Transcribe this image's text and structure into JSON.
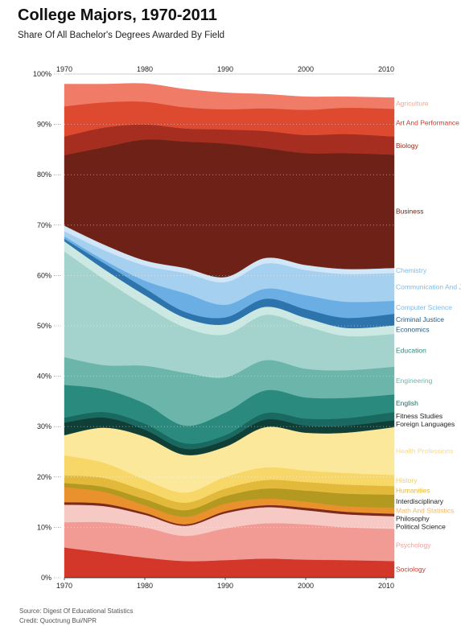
{
  "title": "College Majors, 1970-2011",
  "subtitle": "Share Of All Bachelor's Degrees Awarded By Field",
  "source": "Source: Digest Of Educational Statistics",
  "credit": "Credit: Quoctrung Bui/NPR",
  "chart_data": {
    "type": "area",
    "stacked": true,
    "grid": true,
    "legend": "right",
    "x": [
      1970,
      1975,
      1980,
      1985,
      1990,
      1995,
      2000,
      2005,
      2011
    ],
    "xticks": [
      1970,
      1980,
      1990,
      2000,
      2010
    ],
    "xtick_labels": [
      "1970",
      "1980",
      "1990",
      "2000",
      "2010"
    ],
    "ylim": [
      0,
      100
    ],
    "yticks": [
      0,
      10,
      20,
      30,
      40,
      50,
      60,
      70,
      80,
      90,
      100
    ],
    "ytick_labels": [
      "0%",
      "10%",
      "20%",
      "30%",
      "40%",
      "50%",
      "60%",
      "70%",
      "80%",
      "90%",
      "100%"
    ],
    "series": [
      {
        "name": "Sociology",
        "color": "#d2372a",
        "label_color": "#c93a2c",
        "values": [
          6,
          5,
          4,
          3.3,
          3.5,
          3.8,
          3.6,
          3.5,
          3.3
        ]
      },
      {
        "name": "Psychology",
        "color": "#f29b94",
        "label_color": "#f0a09a",
        "values": [
          5,
          6,
          6,
          5,
          6.3,
          7,
          7,
          6.5,
          6.4
        ]
      },
      {
        "name": "Political Science",
        "color": "#f6c9c4",
        "label_color": "#222222",
        "values": [
          3.5,
          3.2,
          2.5,
          2,
          3,
          3.2,
          2.8,
          2.6,
          2.5
        ]
      },
      {
        "name": "Philosophy",
        "color": "#7c2a1c",
        "label_color": "#222222",
        "values": [
          0.5,
          0.5,
          0.4,
          0.3,
          0.4,
          0.4,
          0.5,
          0.5,
          0.5
        ]
      },
      {
        "name": "Math And Statistics",
        "color": "#e8912d",
        "label_color": "#f2b860",
        "values": [
          3,
          2.3,
          1.5,
          1.5,
          1.5,
          1.3,
          1.2,
          1.1,
          1.2
        ]
      },
      {
        "name": "Interdisciplinary",
        "color": "#b3991f",
        "label_color": "#222222",
        "values": [
          0.8,
          1,
          1.2,
          1.3,
          1.5,
          2,
          2.2,
          2.5,
          2.6
        ]
      },
      {
        "name": "Humanities",
        "color": "#e2b93a",
        "label_color": "#e6b830",
        "values": [
          1.5,
          1.8,
          1.7,
          1.5,
          1.5,
          1.7,
          1.7,
          1.8,
          1.7
        ]
      },
      {
        "name": "History",
        "color": "#f7d768",
        "label_color": "#f2cf52",
        "values": [
          4,
          3,
          2.2,
          2,
          2.3,
          2.5,
          2.3,
          2.3,
          2.2
        ]
      },
      {
        "name": "Health Professions",
        "color": "#fbe89b",
        "label_color": "#f7d98a",
        "values": [
          4,
          7,
          8.5,
          7.5,
          6,
          8,
          7.5,
          8,
          9.5
        ]
      },
      {
        "name": "Foreign Languages",
        "color": "#0f3f36",
        "label_color": "#222222",
        "values": [
          2.5,
          2,
          1.4,
          1.2,
          1.3,
          1.5,
          1.4,
          1.4,
          1.4
        ]
      },
      {
        "name": "Fitness Studies",
        "color": "#1a6960",
        "label_color": "#222222",
        "values": [
          1,
          1.1,
          1.2,
          1.1,
          1,
          1.3,
          1.4,
          1.5,
          1.6
        ]
      },
      {
        "name": "English",
        "color": "#2a8a7e",
        "label_color": "#1a6d64",
        "values": [
          6.5,
          4.5,
          4,
          3.5,
          4.5,
          4.5,
          4.2,
          4,
          3.5
        ]
      },
      {
        "name": "Engineering",
        "color": "#6cb5aa",
        "label_color": "#6cb5aa",
        "values": [
          5.5,
          4.8,
          7.5,
          10.5,
          7,
          6,
          5.7,
          5.5,
          5.5
        ]
      },
      {
        "name": "Education",
        "color": "#a3d3cc",
        "label_color": "#228a7f",
        "values": [
          21,
          17,
          12,
          9,
          8.5,
          9,
          8.5,
          6.8,
          6.5
        ]
      },
      {
        "name": "Economics",
        "color": "#cbe8e2",
        "label_color": "#245b86",
        "values": [
          2,
          2,
          2,
          1.9,
          2,
          1.6,
          1.6,
          1.6,
          1.7
        ]
      },
      {
        "name": "Criminal Justice",
        "color": "#2d74ad",
        "label_color": "#245b86",
        "values": [
          0.5,
          1.2,
          1.4,
          1.2,
          1.4,
          1.6,
          1.7,
          2,
          2.3
        ]
      },
      {
        "name": "Computer Science",
        "color": "#6aaee4",
        "label_color": "#7fbbe6",
        "values": [
          0.5,
          0.6,
          1.5,
          3.7,
          2.5,
          2,
          2.8,
          3.2,
          2.6
        ]
      },
      {
        "name": "Communication And Journalism",
        "color": "#a6d0f0",
        "label_color": "#7fbbe6",
        "values": [
          1,
          2,
          3,
          4,
          4.5,
          5,
          5,
          5.5,
          5.5
        ]
      },
      {
        "name": "Chemistry",
        "color": "#d1e6f7",
        "label_color": "#7fbbe6",
        "values": [
          1.1,
          1.1,
          1,
          1,
          1,
          1.1,
          1,
          1,
          1
        ]
      },
      {
        "name": "Business",
        "color": "#6e2217",
        "label_color": "#6b1d12",
        "values": [
          14,
          19.4,
          24,
          25.1,
          26.5,
          21.8,
          22.2,
          23,
          22.5
        ]
      },
      {
        "name": "Biology",
        "color": "#a52e20",
        "label_color": "#a0291b",
        "values": [
          3.7,
          3.9,
          3,
          2.6,
          2.8,
          3.4,
          3.6,
          3.8,
          3.6
        ]
      },
      {
        "name": "Art And Performance",
        "color": "#de4a30",
        "label_color": "#c93a2c",
        "values": [
          6,
          5,
          4.5,
          4.2,
          4,
          4.5,
          5,
          5.2,
          5.5
        ]
      },
      {
        "name": "Agriculture",
        "color": "#f07b67",
        "label_color": "#f0a896",
        "values": [
          4.4,
          3.6,
          3.6,
          3.6,
          3.3,
          2.8,
          2.6,
          2.2,
          2.2
        ]
      }
    ]
  }
}
